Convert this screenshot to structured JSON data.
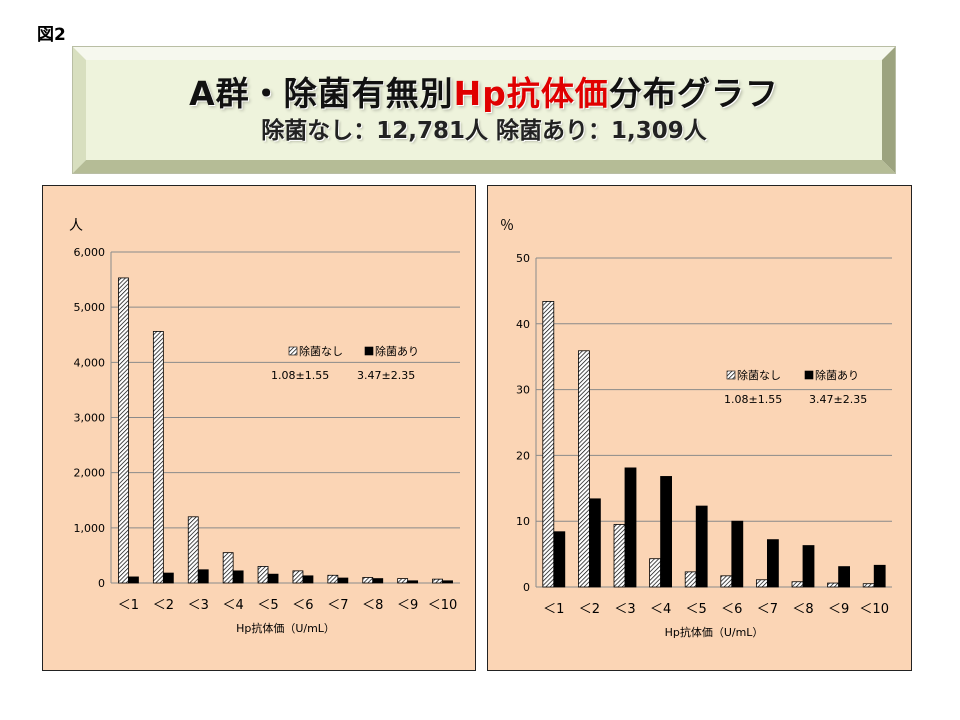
{
  "figure_label": "図2",
  "banner": {
    "title_parts": [
      "A群・除菌有無",
      "別",
      "Hp抗体価",
      "分布グラフ"
    ],
    "subtitle": "除菌なし：12,781人 除菌あり：1,309人"
  },
  "colors": {
    "panel_bg": "#fbd5b5",
    "banner_face": "#eef3dc",
    "title_highlight": "#e00000",
    "solid_bar": "#000000",
    "hatch_stroke": "#000000"
  },
  "chart_data": [
    {
      "type": "bar",
      "ylabel": "人",
      "xlabel": "Hp抗体価（U/mL）",
      "categories": [
        "＜1",
        "＜2",
        "＜3",
        "＜4",
        "＜5",
        "＜6",
        "＜7",
        "＜8",
        "＜9",
        "＜10"
      ],
      "ylim": [
        0,
        6000
      ],
      "yticks": [
        0,
        1000,
        2000,
        3000,
        4000,
        5000,
        6000
      ],
      "ytick_labels": [
        "0",
        "1,000",
        "2,000",
        "3,000",
        "4,000",
        "5,000",
        "6,000"
      ],
      "grid": true,
      "legend": "inside-right",
      "series": [
        {
          "name": "除菌なし",
          "pattern": "hatched",
          "values": [
            5530,
            4560,
            1200,
            550,
            300,
            220,
            140,
            100,
            80,
            70
          ]
        },
        {
          "name": "除菌あり",
          "pattern": "solid",
          "values": [
            110,
            180,
            240,
            220,
            160,
            130,
            90,
            80,
            40,
            40
          ]
        }
      ],
      "annotations": [
        "1.08±1.55",
        "3.47±2.35"
      ]
    },
    {
      "type": "bar",
      "ylabel": "％",
      "xlabel": "Hp抗体価（U/mL）",
      "categories": [
        "＜1",
        "＜2",
        "＜3",
        "＜4",
        "＜5",
        "＜6",
        "＜7",
        "＜8",
        "＜9",
        "＜10"
      ],
      "ylim": [
        0,
        50
      ],
      "yticks": [
        0,
        10,
        20,
        30,
        40,
        50
      ],
      "ytick_labels": [
        "0",
        "10",
        "20",
        "30",
        "40",
        "50"
      ],
      "grid": true,
      "legend": "inside-right",
      "series": [
        {
          "name": "除菌なし",
          "pattern": "hatched",
          "values": [
            43.4,
            35.9,
            9.5,
            4.3,
            2.3,
            1.7,
            1.1,
            0.8,
            0.6,
            0.5
          ]
        },
        {
          "name": "除菌あり",
          "pattern": "solid",
          "values": [
            8.4,
            13.4,
            18.1,
            16.8,
            12.3,
            10.0,
            7.2,
            6.3,
            3.1,
            3.3
          ]
        }
      ],
      "annotations": [
        "1.08±1.55",
        "3.47±2.35"
      ]
    }
  ]
}
